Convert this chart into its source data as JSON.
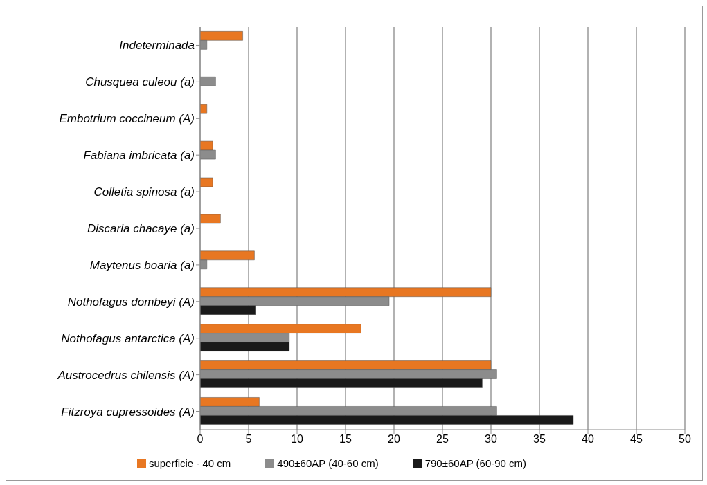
{
  "chart_data": {
    "type": "bar",
    "orientation": "horizontal",
    "categories": [
      "Indeterminada",
      "Chusquea  culeou (a)",
      "Embotrium coccineum  (A)",
      "Fabiana imbricata (a)",
      "Colletia spinosa (a)",
      "Discaria chacaye (a)",
      "Maytenus boaria (a)",
      "Nothofagus dombeyi (A)",
      "Nothofagus antarctica  (A)",
      "Austrocedrus chilensis (A)",
      "Fitzroya cupressoides  (A)"
    ],
    "series": [
      {
        "name": "superficie - 40 cm",
        "color": "#e87722",
        "values": [
          4.4,
          null,
          0.7,
          1.3,
          1.3,
          2.1,
          5.6,
          30,
          16.6,
          30,
          6.1
        ]
      },
      {
        "name": "490±60AP (40-60 cm)",
        "color": "#8c8c8c",
        "values": [
          0.7,
          1.6,
          null,
          1.6,
          null,
          null,
          0.7,
          19.5,
          9.2,
          30.6,
          30.6
        ]
      },
      {
        "name": "790±60AP (60-90 cm)",
        "color": "#1a1a1a",
        "values": [
          null,
          null,
          null,
          null,
          null,
          null,
          null,
          5.7,
          9.2,
          29.1,
          38.5
        ]
      }
    ],
    "xlim": [
      0,
      50
    ],
    "xticks": [
      0,
      5,
      10,
      15,
      20,
      25,
      30,
      35,
      40,
      45,
      50
    ],
    "grid": "x",
    "legend": "bottom"
  }
}
